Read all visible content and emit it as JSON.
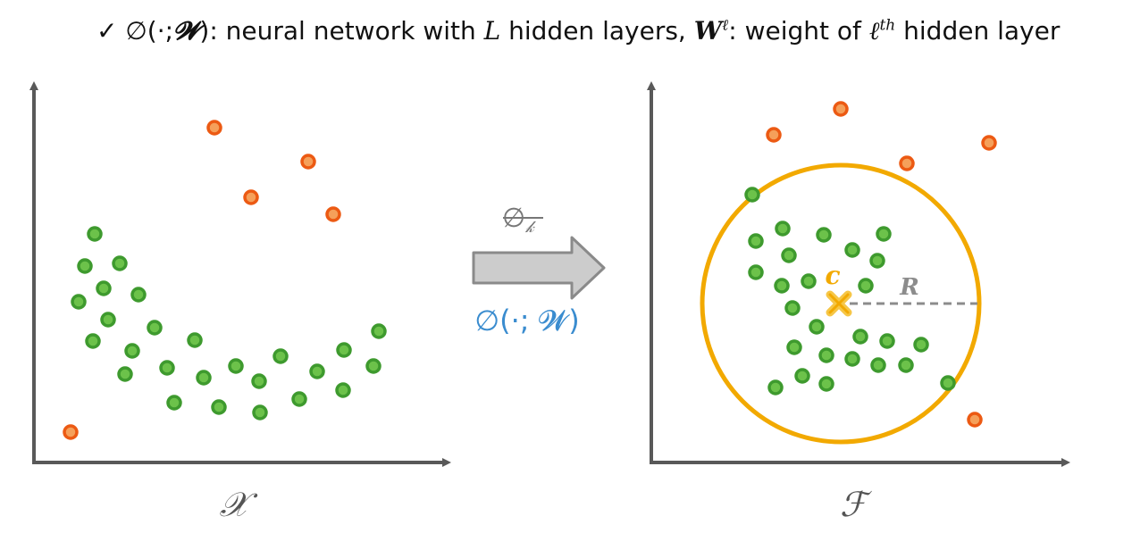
{
  "header": {
    "check": "✓",
    "phi_arg_open": "∅(·;",
    "W_sym": "𝓦",
    "close_colon": "):",
    "text1": " neural network with ",
    "L_sym": "L",
    "text2": " hidden layers, ",
    "W_bold": "W",
    "ell_sup": "ℓ",
    "colon": ":",
    "text3": " weight of ",
    "ell": "ℓ",
    "th_sup": "th",
    "text4": " hidden layer"
  },
  "mapping": {
    "kernel_label": "∅",
    "kernel_sub": "𝓀",
    "network_label": "∅(·; 𝓦)"
  },
  "left_panel": {
    "space_label": "𝒳"
  },
  "right_panel": {
    "space_label": "ℱ",
    "center_label": "c",
    "radius_label": "R"
  },
  "colors": {
    "normal_fill": "#6cc24a",
    "normal_stroke": "#3e9a2e",
    "anomaly_fill": "#f5a05a",
    "anomaly_stroke": "#ec5a13",
    "circle": "#f2a900",
    "axis": "#595959",
    "radius_line": "#8c8c8c",
    "network_text": "#3a8ccf",
    "arrow_fill": "#cccccc",
    "arrow_stroke": "#8a8a8a"
  },
  "scatter_left": {
    "normal": [
      [
        106,
        262
      ],
      [
        95,
        298
      ],
      [
        134,
        295
      ],
      [
        116,
        323
      ],
      [
        88,
        338
      ],
      [
        155,
        330
      ],
      [
        121,
        358
      ],
      [
        104,
        382
      ],
      [
        148,
        393
      ],
      [
        173,
        367
      ],
      [
        218,
        381
      ],
      [
        140,
        419
      ],
      [
        187,
        412
      ],
      [
        228,
        423
      ],
      [
        264,
        410
      ],
      [
        290,
        427
      ],
      [
        195,
        451
      ],
      [
        245,
        456
      ],
      [
        291,
        462
      ],
      [
        314,
        399
      ],
      [
        335,
        447
      ],
      [
        355,
        416
      ],
      [
        385,
        392
      ],
      [
        384,
        437
      ],
      [
        418,
        410
      ],
      [
        424,
        371
      ]
    ],
    "anomaly": [
      [
        240,
        143
      ],
      [
        345,
        181
      ],
      [
        281,
        221
      ],
      [
        373,
        240
      ],
      [
        79,
        484
      ]
    ]
  },
  "scatter_right": {
    "normal": [
      [
        842,
        218
      ],
      [
        846,
        270
      ],
      [
        876,
        256
      ],
      [
        922,
        263
      ],
      [
        989,
        262
      ],
      [
        883,
        286
      ],
      [
        954,
        280
      ],
      [
        982,
        292
      ],
      [
        846,
        305
      ],
      [
        875,
        320
      ],
      [
        905,
        315
      ],
      [
        969,
        320
      ],
      [
        887,
        345
      ],
      [
        914,
        366
      ],
      [
        963,
        377
      ],
      [
        993,
        382
      ],
      [
        1031,
        386
      ],
      [
        889,
        389
      ],
      [
        925,
        398
      ],
      [
        954,
        402
      ],
      [
        983,
        409
      ],
      [
        1014,
        409
      ],
      [
        898,
        421
      ],
      [
        925,
        430
      ],
      [
        868,
        434
      ],
      [
        1061,
        429
      ]
    ],
    "anomaly": [
      [
        866,
        151
      ],
      [
        941,
        122
      ],
      [
        1015,
        183
      ],
      [
        1107,
        160
      ],
      [
        1091,
        470
      ]
    ],
    "center": [
      939,
      340
    ],
    "circle": {
      "cx": 941,
      "cy": 340,
      "r": 155
    }
  }
}
